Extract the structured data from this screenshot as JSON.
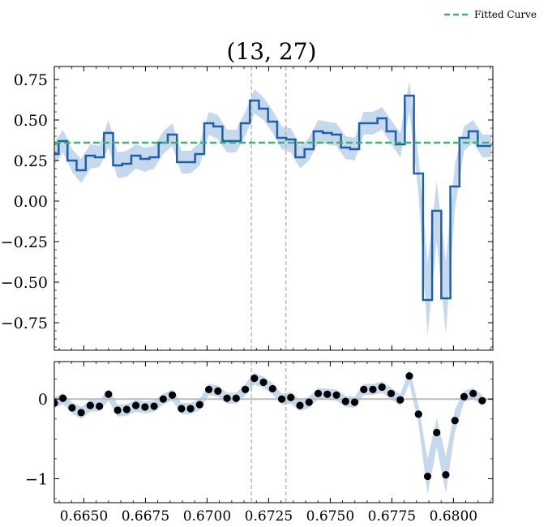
{
  "chart_data": [
    {
      "type": "line",
      "title": "(13, 27)",
      "xlabel": "",
      "ylabel": "",
      "xlim": [
        0.6638,
        0.6816
      ],
      "ylim": [
        -0.92,
        0.83
      ],
      "x_ticks": [
        0.665,
        0.6675,
        0.67,
        0.6725,
        0.675,
        0.6775,
        0.68
      ],
      "y_ticks": [
        0.75,
        0.5,
        0.25,
        0.0,
        -0.25,
        -0.5,
        -0.75
      ],
      "y_tick_labels": [
        "0.75",
        "0.50",
        "0.25",
        "0.00",
        "−0.25",
        "−0.50",
        "−0.75"
      ],
      "vlines": [
        0.6718,
        0.6732
      ],
      "legend": {
        "position": "top-right",
        "entries": [
          "Fitted Curve"
        ]
      },
      "series": [
        {
          "name": "",
          "style": "step",
          "x": [
            0.6638,
            0.66415,
            0.66452,
            0.66489,
            0.66526,
            0.66563,
            0.666,
            0.66637,
            0.66674,
            0.66711,
            0.66748,
            0.66785,
            0.66822,
            0.66859,
            0.66896,
            0.66933,
            0.6697,
            0.67007,
            0.67044,
            0.67081,
            0.67118,
            0.67155,
            0.67192,
            0.67229,
            0.67266,
            0.67303,
            0.6734,
            0.67377,
            0.67414,
            0.67451,
            0.67488,
            0.67525,
            0.67562,
            0.67599,
            0.67636,
            0.67673,
            0.6771,
            0.67747,
            0.67784,
            0.67821,
            0.67858,
            0.67895,
            0.67932,
            0.67969,
            0.68006,
            0.68043,
            0.6808,
            0.68117,
            0.68154
          ],
          "y": [
            0.29,
            0.37,
            0.25,
            0.19,
            0.28,
            0.27,
            0.42,
            0.22,
            0.23,
            0.28,
            0.26,
            0.27,
            0.36,
            0.41,
            0.24,
            0.24,
            0.29,
            0.48,
            0.46,
            0.37,
            0.37,
            0.48,
            0.62,
            0.57,
            0.49,
            0.39,
            0.38,
            0.27,
            0.32,
            0.43,
            0.42,
            0.41,
            0.33,
            0.32,
            0.48,
            0.48,
            0.51,
            0.43,
            0.35,
            0.65,
            0.17,
            -0.61,
            -0.06,
            -0.6,
            0.09,
            0.39,
            0.43,
            0.34,
            0.34
          ],
          "band_lower": [
            0.22,
            0.3,
            0.18,
            0.11,
            0.2,
            0.21,
            0.33,
            0.14,
            0.15,
            0.2,
            0.18,
            0.2,
            0.29,
            0.34,
            0.17,
            0.17,
            0.22,
            0.41,
            0.38,
            0.3,
            0.3,
            0.4,
            0.54,
            0.5,
            0.42,
            0.32,
            0.3,
            0.2,
            0.25,
            0.36,
            0.35,
            0.34,
            0.26,
            0.25,
            0.41,
            0.41,
            0.44,
            0.35,
            0.27,
            0.55,
            0.05,
            -0.83,
            -0.25,
            -0.82,
            -0.05,
            0.31,
            0.36,
            0.27,
            0.27
          ],
          "band_upper": [
            0.36,
            0.44,
            0.32,
            0.26,
            0.35,
            0.34,
            0.5,
            0.3,
            0.31,
            0.35,
            0.33,
            0.34,
            0.43,
            0.48,
            0.31,
            0.31,
            0.36,
            0.55,
            0.53,
            0.44,
            0.44,
            0.55,
            0.69,
            0.64,
            0.56,
            0.46,
            0.45,
            0.34,
            0.39,
            0.5,
            0.49,
            0.48,
            0.4,
            0.39,
            0.55,
            0.55,
            0.58,
            0.5,
            0.42,
            0.74,
            0.28,
            -0.38,
            0.12,
            -0.37,
            0.23,
            0.46,
            0.5,
            0.41,
            0.41
          ]
        },
        {
          "name": "Fitted Curve",
          "style": "dashed",
          "color": "#3cb371",
          "x": [
            0.6638,
            0.6816
          ],
          "y": [
            0.36,
            0.36
          ]
        }
      ]
    },
    {
      "type": "scatter",
      "title": "",
      "xlabel": "",
      "ylabel": "",
      "xlim": [
        0.6638,
        0.6816
      ],
      "ylim": [
        -1.3,
        0.47
      ],
      "x_ticks": [
        0.665,
        0.6675,
        0.67,
        0.6725,
        0.675,
        0.6775,
        0.68
      ],
      "x_tick_labels": [
        "0.6650",
        "0.6675",
        "0.6700",
        "0.6725",
        "0.6750",
        "0.6775",
        "0.6800"
      ],
      "y_ticks": [
        0,
        -1
      ],
      "y_tick_labels": [
        "0",
        "−1"
      ],
      "hline": 0,
      "vlines": [
        0.6718,
        0.6732
      ],
      "series": [
        {
          "name": "",
          "x": [
            0.6638,
            0.66415,
            0.66452,
            0.66489,
            0.66526,
            0.66563,
            0.666,
            0.66637,
            0.66674,
            0.66711,
            0.66748,
            0.66785,
            0.66822,
            0.66859,
            0.66896,
            0.66933,
            0.6697,
            0.67007,
            0.67044,
            0.67081,
            0.67118,
            0.67155,
            0.67192,
            0.67229,
            0.67266,
            0.67303,
            0.6734,
            0.67377,
            0.67414,
            0.67451,
            0.67488,
            0.67525,
            0.67562,
            0.67599,
            0.67636,
            0.67673,
            0.6771,
            0.67747,
            0.67784,
            0.67821,
            0.67858,
            0.67895,
            0.67932,
            0.67969,
            0.68006,
            0.68043,
            0.6808,
            0.68117
          ],
          "y": [
            -0.05,
            0.01,
            -0.11,
            -0.17,
            -0.08,
            -0.09,
            0.06,
            -0.14,
            -0.13,
            -0.08,
            -0.1,
            -0.09,
            0.0,
            0.05,
            -0.12,
            -0.12,
            -0.07,
            0.12,
            0.1,
            0.01,
            0.01,
            0.12,
            0.26,
            0.21,
            0.13,
            0.0,
            0.02,
            -0.08,
            -0.04,
            0.07,
            0.06,
            0.05,
            -0.03,
            -0.04,
            0.12,
            0.12,
            0.15,
            0.07,
            -0.01,
            0.29,
            -0.19,
            -0.97,
            -0.42,
            -0.95,
            -0.27,
            0.03,
            0.07,
            -0.02
          ],
          "band_lower": [
            -0.12,
            -0.06,
            -0.18,
            -0.25,
            -0.16,
            -0.15,
            -0.02,
            -0.22,
            -0.21,
            -0.16,
            -0.18,
            -0.16,
            -0.07,
            -0.02,
            -0.19,
            -0.19,
            -0.14,
            0.05,
            0.03,
            -0.06,
            -0.06,
            0.04,
            0.18,
            0.14,
            0.06,
            -0.07,
            -0.06,
            -0.15,
            -0.11,
            0.0,
            -0.01,
            -0.02,
            -0.1,
            -0.11,
            0.05,
            0.05,
            0.08,
            0.0,
            -0.09,
            0.2,
            -0.31,
            -1.2,
            -0.6,
            -1.18,
            -0.41,
            -0.04,
            0.0,
            -0.09
          ],
          "band_upper": [
            0.02,
            0.08,
            -0.04,
            -0.1,
            -0.01,
            -0.02,
            0.13,
            -0.07,
            -0.06,
            -0.01,
            -0.03,
            -0.02,
            0.07,
            0.12,
            -0.05,
            -0.05,
            0.0,
            0.19,
            0.17,
            0.08,
            0.08,
            0.19,
            0.33,
            0.28,
            0.2,
            0.07,
            0.09,
            -0.01,
            0.03,
            0.14,
            0.13,
            0.12,
            0.04,
            0.03,
            0.19,
            0.19,
            0.22,
            0.14,
            0.06,
            0.38,
            -0.08,
            -0.75,
            -0.24,
            -0.72,
            -0.13,
            0.1,
            0.14,
            0.05
          ]
        }
      ]
    }
  ]
}
